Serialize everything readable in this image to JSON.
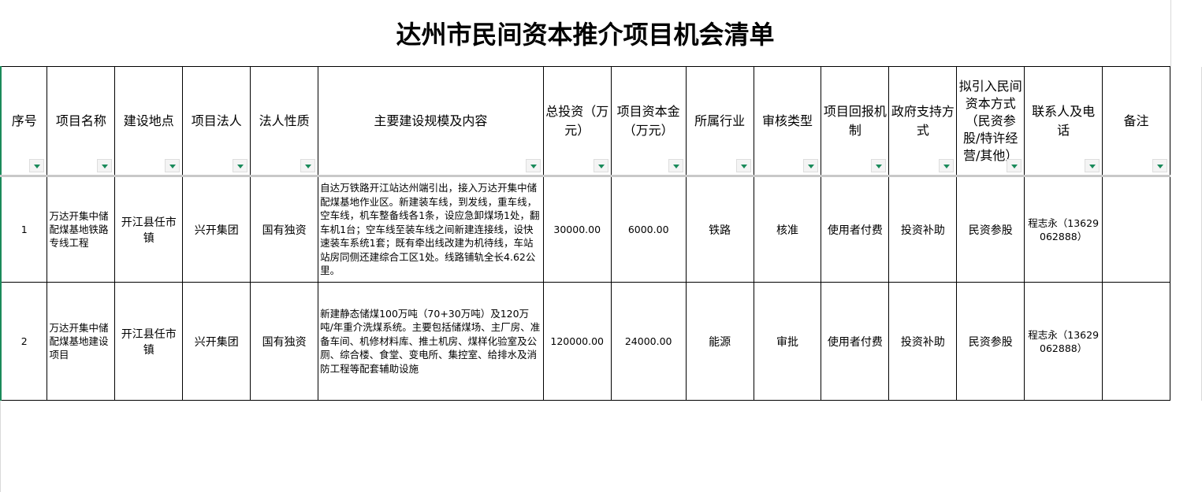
{
  "title": "达州市民间资本推介项目机会清单",
  "headers": [
    "序号",
    "项目名称",
    "建设地点",
    "项目法人",
    "法人性质",
    "主要建设规模及内容",
    "总投资（万元）",
    "项目资本金（万元）",
    "所属行业",
    "审核类型",
    "项目回报机制",
    "政府支持方式",
    "拟引入民间资本方式（民资参股/特许经营/其他）",
    "联系人及电话",
    "备注"
  ],
  "rows": [
    {
      "no": "1",
      "name": "万达开集中储配煤基地铁路专线工程",
      "location": "开江县任市镇",
      "legal_entity": "兴开集团",
      "entity_type": "国有独资",
      "content": "自达万铁路开江站达州端引出，接入万达开集中储配煤基地作业区。新建装车线，到发线，重车线，空车线，机车整备线各1条，设应急卸煤场1处，翻车机1台；空车线至装车线之间新建连接线，设快速装车系统1套；既有牵出线改建为机待线，车站站房同侧还建综合工区1处。线路铺轨全长4.62公里。",
      "total_investment": "30000.00",
      "capital": "6000.00",
      "industry": "铁路",
      "review_type": "核准",
      "return_mechanism": "使用者付费",
      "gov_support": "投资补助",
      "private_capital_mode": "民资参股",
      "contact": "程志永（13629062888）",
      "remark": ""
    },
    {
      "no": "2",
      "name": "万达开集中储配煤基地建设项目",
      "location": "开江县任市镇",
      "legal_entity": "兴开集团",
      "entity_type": "国有独资",
      "content": "新建静态储煤100万吨（70+30万吨）及120万吨/年重介洗煤系统。主要包括储煤场、主厂房、准备车间、机修材料库、推土机房、煤样化验室及公厕、综合楼、食堂、变电所、集控室、给排水及消防工程等配套辅助设施",
      "total_investment": "120000.00",
      "capital": "24000.00",
      "industry": "能源",
      "review_type": "审批",
      "return_mechanism": "使用者付费",
      "gov_support": "投资补助",
      "private_capital_mode": "民资参股",
      "contact": "程志永（13629062888）",
      "remark": ""
    }
  ],
  "colors": {
    "filter_arrow": "#1a8a5a",
    "frozen_line": "#c8c8c8"
  }
}
